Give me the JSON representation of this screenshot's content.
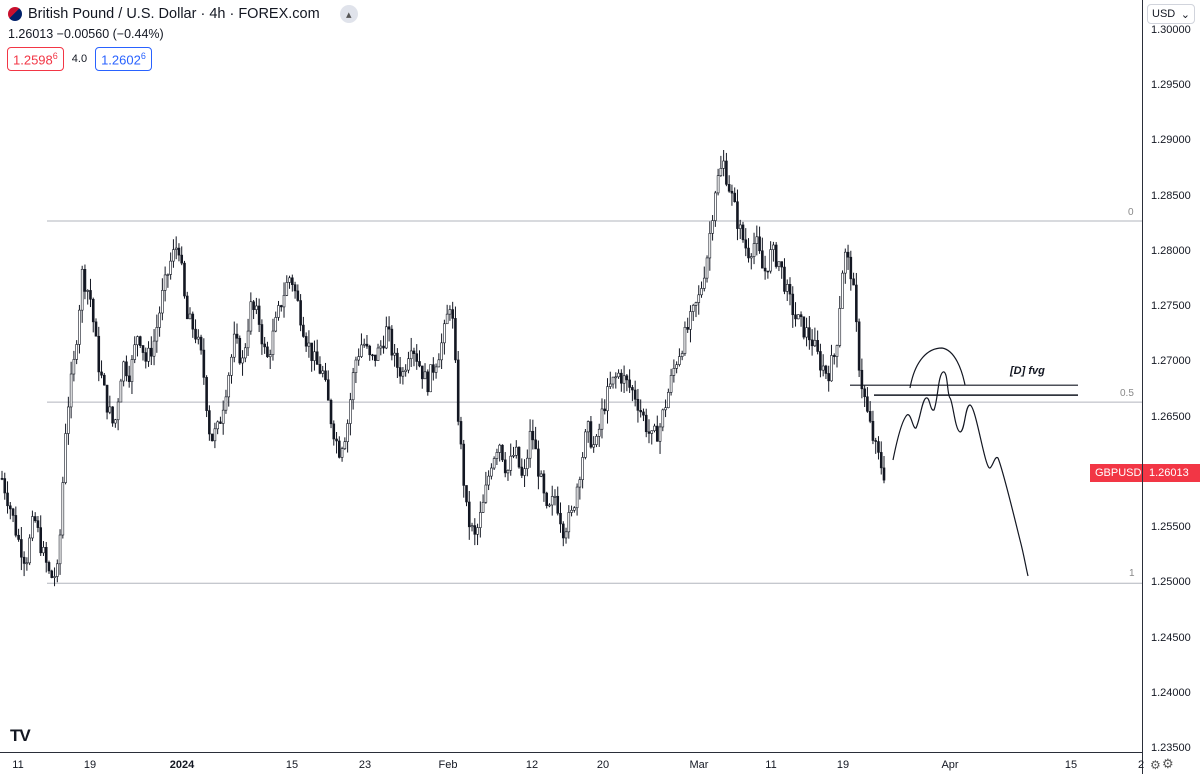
{
  "header": {
    "title": "British Pound / U.S. Dollar · 4h · FOREX.com",
    "price_line": "1.26013  −0.00560 (−0.44%)",
    "bid": "1.2598",
    "bid_sup": "6",
    "spread": "4.0",
    "ask": "1.2602",
    "ask_sup": "6",
    "flag_icon": "uk-us-flag-icon",
    "collapse_icon": "chevron-up-icon"
  },
  "price_axis": {
    "currency": "USD",
    "labels": [
      "1.30000",
      "1.29500",
      "1.29000",
      "1.28500",
      "1.28000",
      "1.27500",
      "1.27000",
      "1.26500",
      "1.25500",
      "1.25000",
      "1.24500",
      "1.24000",
      "1.23500"
    ],
    "symbol_tag": "GBPUSD",
    "last_price": "1.26013",
    "last_price_color": "#f23645"
  },
  "time_axis": {
    "labels": [
      "11",
      "19",
      "2024",
      "15",
      "23",
      "Feb",
      "12",
      "20",
      "Mar",
      "11",
      "19",
      "Apr",
      "15",
      "2"
    ]
  },
  "drawings": {
    "fib_0": "0",
    "fib_05": "0.5",
    "fib_1": "1",
    "fvg_label": "[D] fvg"
  },
  "logo": "TV",
  "chart_data": {
    "type": "candlestick",
    "title": "British Pound / U.S. Dollar · 4h · FOREX.com",
    "ylim": [
      1.2335,
      1.3025
    ],
    "x_ticks": [
      "11",
      "19",
      "2024",
      "15",
      "23",
      "Feb",
      "12",
      "20",
      "Mar",
      "11",
      "19",
      "Apr",
      "15",
      "2"
    ],
    "y_ticks": [
      1.235,
      1.24,
      1.245,
      1.25,
      1.255,
      1.265,
      1.27,
      1.275,
      1.28,
      1.285,
      1.29,
      1.295,
      1.3
    ],
    "levels": [
      {
        "label": "0",
        "price": 1.2828
      },
      {
        "label": "0.5",
        "price": 1.2664
      },
      {
        "label": "1",
        "price": 1.25
      }
    ],
    "fvg_zone": {
      "label": "[D] fvg",
      "top": 1.2683,
      "bottom": 1.2674
    },
    "close_path": [
      1.2595,
      1.257,
      1.254,
      1.252,
      1.256,
      1.253,
      1.2505,
      1.251,
      1.265,
      1.27,
      1.278,
      1.276,
      1.27,
      1.2665,
      1.264,
      1.27,
      1.269,
      1.273,
      1.27,
      1.272,
      1.276,
      1.279,
      1.281,
      1.274,
      1.273,
      1.27,
      1.263,
      1.264,
      1.268,
      1.272,
      1.27,
      1.275,
      1.274,
      1.27,
      1.273,
      1.276,
      1.278,
      1.275,
      1.272,
      1.27,
      1.269,
      1.265,
      1.262,
      1.264,
      1.27,
      1.272,
      1.27,
      1.271,
      1.273,
      1.27,
      1.269,
      1.272,
      1.27,
      1.268,
      1.27,
      1.272,
      1.276,
      1.264,
      1.256,
      1.254,
      1.257,
      1.261,
      1.263,
      1.26,
      1.262,
      1.259,
      1.264,
      1.26,
      1.256,
      1.258,
      1.255,
      1.256,
      1.26,
      1.264,
      1.262,
      1.266,
      1.268,
      1.269,
      1.268,
      1.267,
      1.265,
      1.263,
      1.264,
      1.267,
      1.27,
      1.272,
      1.274,
      1.276,
      1.28,
      1.286,
      1.288,
      1.285,
      1.282,
      1.28,
      1.281,
      1.278,
      1.28,
      1.279,
      1.276,
      1.274,
      1.273,
      1.272,
      1.27,
      1.269,
      1.271,
      1.28,
      1.278,
      1.269,
      1.265,
      1.262,
      1.26
    ],
    "projection_note": "hand-drawn projection path"
  }
}
